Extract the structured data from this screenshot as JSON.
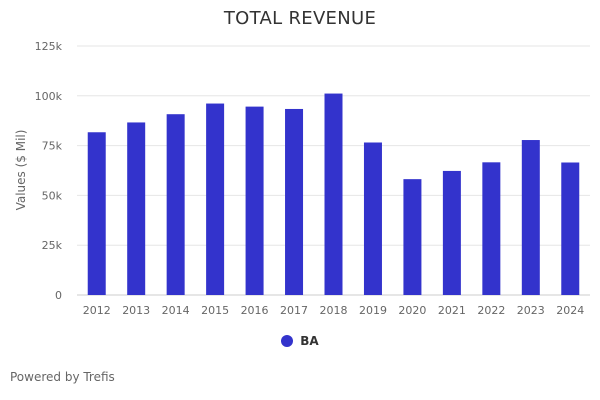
{
  "chart_data": {
    "type": "bar",
    "title": "TOTAL REVENUE",
    "xlabel": "",
    "ylabel": "Values ($ Mil)",
    "ylim": [
      0,
      125000
    ],
    "yticks": [
      0,
      25000,
      50000,
      75000,
      100000,
      125000
    ],
    "ytick_labels": [
      "0",
      "25k",
      "50k",
      "75k",
      "100k",
      "125k"
    ],
    "categories": [
      "2012",
      "2013",
      "2014",
      "2015",
      "2016",
      "2017",
      "2018",
      "2019",
      "2020",
      "2021",
      "2022",
      "2023",
      "2024"
    ],
    "series": [
      {
        "name": "BA",
        "color": "#3333cc",
        "values": [
          81698,
          86623,
          90762,
          96114,
          94571,
          93392,
          101127,
          76559,
          58158,
          62286,
          66608,
          77794,
          66517
        ]
      }
    ],
    "legend_position": "bottom-center",
    "grid": true
  },
  "credits": "Powered by Trefis"
}
